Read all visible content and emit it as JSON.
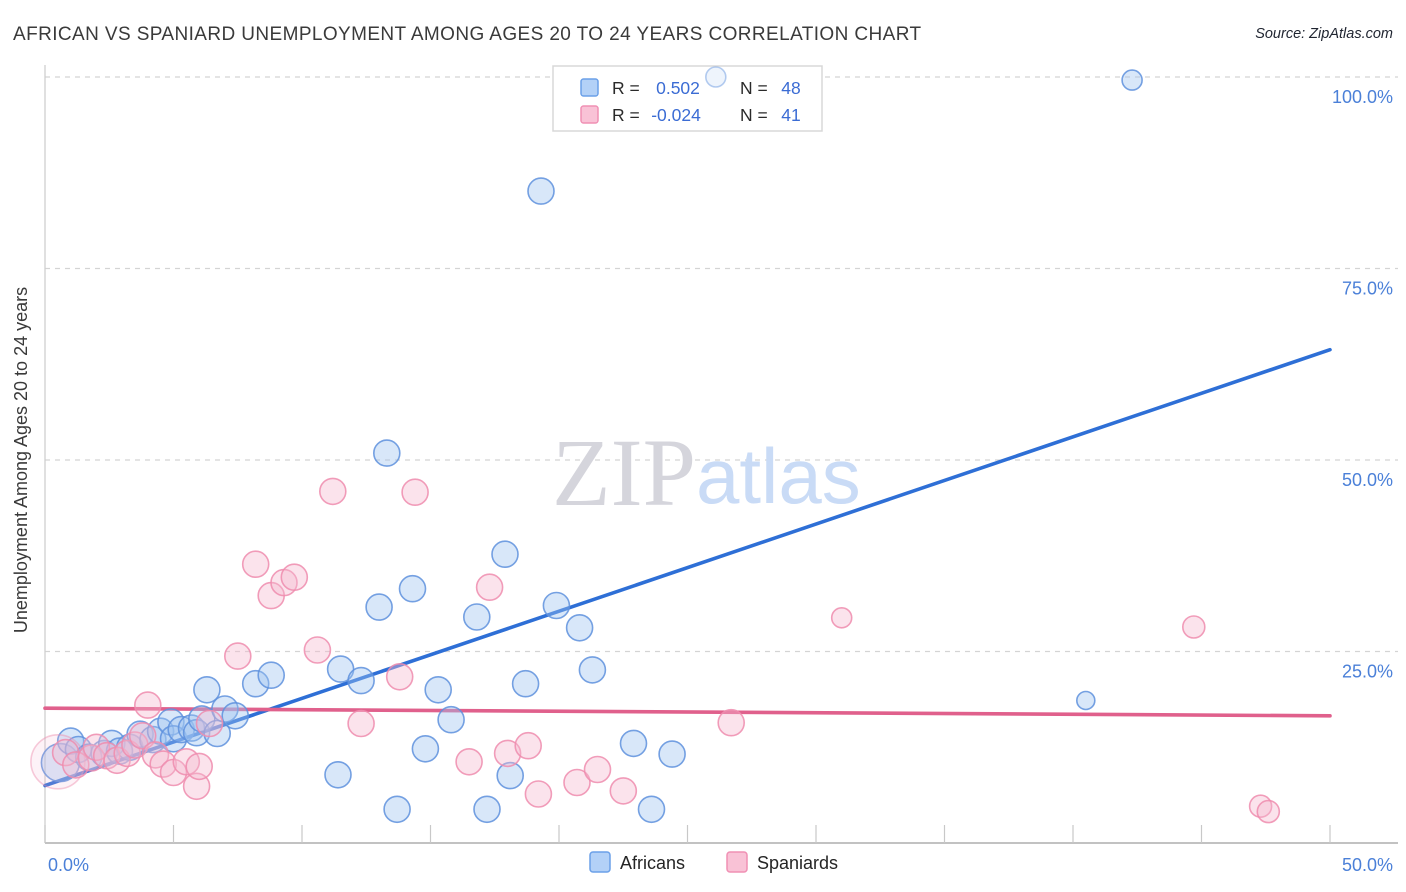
{
  "header": {
    "title": "AFRICAN VS SPANIARD UNEMPLOYMENT AMONG AGES 20 TO 24 YEARS CORRELATION CHART",
    "source": "Source: ZipAtlas.com"
  },
  "watermark": {
    "zip": "ZIP",
    "atlas": "atlas"
  },
  "y_axis": {
    "label": "Unemployment Among Ages 20 to 24 years",
    "tick_labels": [
      "25.0%",
      "50.0%",
      "75.0%",
      "100.0%"
    ],
    "gridline_values": [
      25,
      50,
      75,
      100
    ]
  },
  "x_axis": {
    "min_label": "0.0%",
    "max_label": "50.0%",
    "range": [
      0,
      50
    ],
    "tick_step": 5
  },
  "legend_box": {
    "rows": [
      {
        "series": "africans",
        "r_label": "R =",
        "r_value": "0.502",
        "n_label": "N =",
        "n_value": "48"
      },
      {
        "series": "spaniards",
        "r_label": "R =",
        "r_value": "-0.024",
        "n_label": "N =",
        "n_value": "41"
      }
    ]
  },
  "bottom_legend": {
    "africans": "Africans",
    "spaniards": "Spaniards"
  },
  "colors": {
    "africans_fill": "#9ec4f0",
    "africans_stroke": "#5e90dd",
    "spaniards_fill": "#f6b9d0",
    "spaniards_stroke": "#ee8cae",
    "africans_line": "#2e6fd6",
    "spaniards_line": "#e0608c",
    "axis_label_blue": "#4b80d8",
    "grid": "#d4d4d4",
    "axis": "#adadad",
    "title_text": "#3a3a3a",
    "legend_value_blue": "#3b6cd4"
  },
  "chart_data": {
    "type": "scatter",
    "title": "AFRICAN VS SPANIARD UNEMPLOYMENT AMONG AGES 20 TO 24 YEARS CORRELATION CHART",
    "xlabel": "",
    "ylabel": "Unemployment Among Ages 20 to 24 years",
    "xlim": [
      0,
      50
    ],
    "ylim": [
      0,
      105
    ],
    "x_units": "percent",
    "y_units": "percent",
    "grid": "horizontal-dashed",
    "legend_position": "top-center",
    "series": [
      {
        "name": "Africans",
        "R": 0.502,
        "N": 48,
        "points": [
          [
            0.6,
            10.5,
            19
          ],
          [
            1.0,
            13.3
          ],
          [
            1.3,
            12.2
          ],
          [
            1.7,
            11.2
          ],
          [
            2.3,
            11.7
          ],
          [
            2.6,
            13.0
          ],
          [
            2.9,
            12.0
          ],
          [
            3.3,
            12.5
          ],
          [
            3.7,
            14.2
          ],
          [
            4.2,
            13.5
          ],
          [
            4.5,
            14.6
          ],
          [
            4.9,
            15.8
          ],
          [
            5.0,
            13.6
          ],
          [
            5.3,
            14.8
          ],
          [
            5.7,
            15.0
          ],
          [
            5.9,
            14.4
          ],
          [
            6.1,
            16.2
          ],
          [
            6.3,
            20.0
          ],
          [
            6.7,
            14.3
          ],
          [
            7.0,
            17.5
          ],
          [
            7.4,
            16.6
          ],
          [
            8.2,
            20.8
          ],
          [
            8.8,
            21.9
          ],
          [
            11.4,
            8.9
          ],
          [
            11.5,
            22.7
          ],
          [
            12.3,
            21.2
          ],
          [
            13.0,
            30.8
          ],
          [
            13.3,
            50.9
          ],
          [
            13.7,
            4.4
          ],
          [
            14.3,
            33.2
          ],
          [
            14.8,
            12.3
          ],
          [
            15.3,
            20.0
          ],
          [
            15.8,
            16.1
          ],
          [
            16.8,
            29.5
          ],
          [
            17.2,
            4.4
          ],
          [
            17.9,
            37.7
          ],
          [
            18.1,
            8.8
          ],
          [
            18.7,
            20.8
          ],
          [
            19.3,
            85.1
          ],
          [
            19.9,
            31.0
          ],
          [
            20.8,
            28.1
          ],
          [
            21.3,
            22.6
          ],
          [
            22.9,
            13.0
          ],
          [
            23.6,
            4.4
          ],
          [
            24.4,
            11.6
          ],
          [
            26.1,
            100.0,
            10,
            "faint"
          ],
          [
            40.5,
            18.6,
            9
          ],
          [
            42.3,
            99.6,
            10
          ]
        ]
      },
      {
        "name": "Spaniards",
        "R": -0.024,
        "N": 41,
        "points": [
          [
            0.5,
            10.6,
            27,
            "faint"
          ],
          [
            0.8,
            11.8
          ],
          [
            1.2,
            10.2
          ],
          [
            1.8,
            11.1
          ],
          [
            2.0,
            12.5
          ],
          [
            2.4,
            11.4
          ],
          [
            2.8,
            10.8
          ],
          [
            3.2,
            11.7
          ],
          [
            3.5,
            12.8
          ],
          [
            3.8,
            14.0
          ],
          [
            4.0,
            18.0
          ],
          [
            4.3,
            11.5
          ],
          [
            4.6,
            10.3
          ],
          [
            5.0,
            9.2
          ],
          [
            5.5,
            10.6
          ],
          [
            5.9,
            7.4
          ],
          [
            6.0,
            10.0
          ],
          [
            6.4,
            15.6
          ],
          [
            7.5,
            24.4
          ],
          [
            8.2,
            36.4
          ],
          [
            8.8,
            32.3
          ],
          [
            9.3,
            34.0
          ],
          [
            9.7,
            34.7
          ],
          [
            10.6,
            25.2
          ],
          [
            11.2,
            45.9
          ],
          [
            12.3,
            15.6
          ],
          [
            13.8,
            21.7
          ],
          [
            14.4,
            45.8
          ],
          [
            16.5,
            10.6
          ],
          [
            17.3,
            33.4
          ],
          [
            18.0,
            11.7
          ],
          [
            18.8,
            12.7
          ],
          [
            19.2,
            6.4
          ],
          [
            20.7,
            7.9
          ],
          [
            21.5,
            9.6
          ],
          [
            22.5,
            6.8
          ],
          [
            26.7,
            15.7
          ],
          [
            31.0,
            29.4,
            10
          ],
          [
            44.7,
            28.2,
            11
          ],
          [
            47.3,
            4.8,
            11
          ],
          [
            47.6,
            4.1,
            11
          ]
        ]
      }
    ],
    "trend_lines": [
      {
        "series": "Africans",
        "x": [
          0,
          50
        ],
        "y": [
          7.5,
          64.4
        ]
      },
      {
        "series": "Spaniards",
        "x": [
          0,
          50
        ],
        "y": [
          17.6,
          16.6
        ]
      }
    ]
  }
}
